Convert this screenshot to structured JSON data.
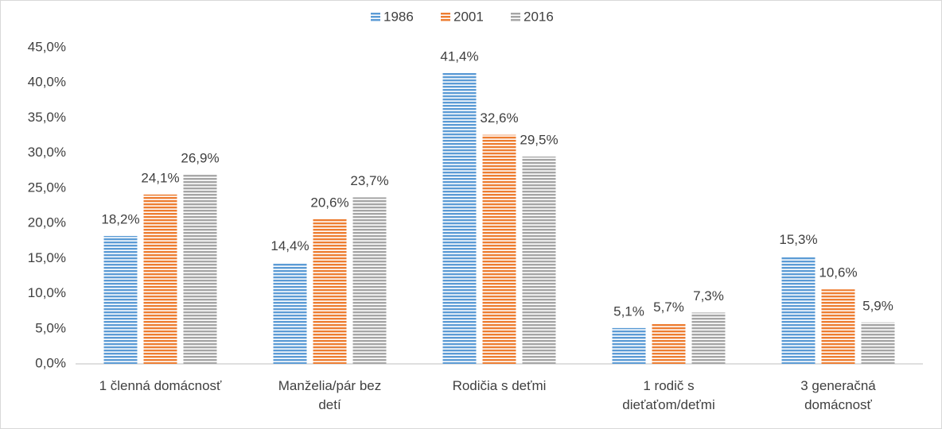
{
  "chart_data": {
    "type": "bar",
    "categories": [
      "1 členná domácnosť",
      "Manželia/pár bez\ndetí",
      "Rodičia s deťmi",
      "1 rodič s\ndieťaťom/deťmi",
      "3 generačná\ndomácnosť"
    ],
    "series": [
      {
        "name": "1986",
        "color": "#5b9bd5",
        "values": [
          18.2,
          14.4,
          41.4,
          5.1,
          15.3
        ],
        "value_labels": [
          "18,2%",
          "14,4%",
          "41,4%",
          "5,1%",
          "15,3%"
        ]
      },
      {
        "name": "2001",
        "color": "#ed7d31",
        "values": [
          24.1,
          20.6,
          32.6,
          5.7,
          10.6
        ],
        "value_labels": [
          "24,1%",
          "20,6%",
          "32,6%",
          "5,7%",
          "10,6%"
        ]
      },
      {
        "name": "2016",
        "color": "#a5a5a5",
        "values": [
          26.9,
          23.7,
          29.5,
          7.3,
          5.9
        ],
        "value_labels": [
          "26,9%",
          "23,7%",
          "29,5%",
          "7,3%",
          "5,9%"
        ]
      }
    ],
    "ylim": [
      0,
      45
    ],
    "yticks": [
      {
        "value": 0,
        "label": "0,0%"
      },
      {
        "value": 5,
        "label": "5,0%"
      },
      {
        "value": 10,
        "label": "10,0%"
      },
      {
        "value": 15,
        "label": "15,0%"
      },
      {
        "value": 20,
        "label": "20,0%"
      },
      {
        "value": 25,
        "label": "25,0%"
      },
      {
        "value": 30,
        "label": "30,0%"
      },
      {
        "value": 35,
        "label": "35,0%"
      },
      {
        "value": 40,
        "label": "40,0%"
      },
      {
        "value": 45,
        "label": "45,0%"
      }
    ],
    "legend": "top"
  }
}
